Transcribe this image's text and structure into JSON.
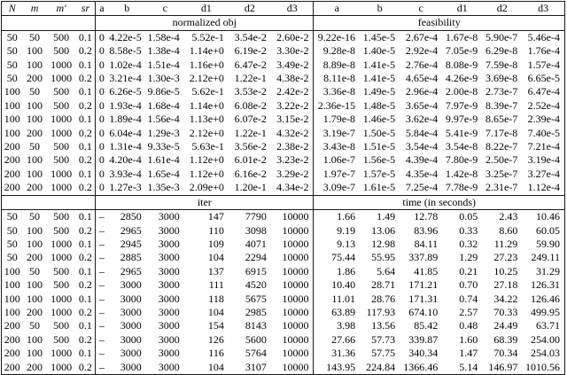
{
  "table": {
    "param_columns": [
      "N",
      "m",
      "m′",
      "sr"
    ],
    "method_columns": [
      "a",
      "b",
      "c",
      "d1",
      "d2",
      "d3"
    ],
    "param_rows": [
      [
        "50",
        "50",
        "500",
        "0.1"
      ],
      [
        "50",
        "100",
        "500",
        "0.2"
      ],
      [
        "50",
        "100",
        "1000",
        "0.1"
      ],
      [
        "50",
        "200",
        "1000",
        "0.2"
      ],
      [
        "100",
        "50",
        "500",
        "0.1"
      ],
      [
        "100",
        "100",
        "500",
        "0.2"
      ],
      [
        "100",
        "100",
        "1000",
        "0.1"
      ],
      [
        "100",
        "200",
        "1000",
        "0.2"
      ],
      [
        "200",
        "50",
        "500",
        "0.1"
      ],
      [
        "200",
        "100",
        "500",
        "0.2"
      ],
      [
        "200",
        "100",
        "1000",
        "0.1"
      ],
      [
        "200",
        "200",
        "1000",
        "0.2"
      ]
    ],
    "sections": [
      {
        "left_label": "normalized obj",
        "right_label": "feasibility",
        "left_rows": [
          [
            "0",
            "4.22e-5",
            "1.58e-4",
            "5.52e-1",
            "3.54e-2",
            "2.60e-2"
          ],
          [
            "0",
            "8.58e-5",
            "1.38e-4",
            "1.14e+0",
            "6.19e-2",
            "3.30e-2"
          ],
          [
            "0",
            "1.02e-4",
            "1.51e-4",
            "1.16e+0",
            "6.47e-2",
            "3.49e-2"
          ],
          [
            "0",
            "3.21e-4",
            "1.30e-3",
            "2.12e+0",
            "1.22e-1",
            "4.38e-2"
          ],
          [
            "0",
            "6.26e-5",
            "9.86e-5",
            "5.62e-1",
            "3.53e-2",
            "2.42e-2"
          ],
          [
            "0",
            "1.93e-4",
            "1.68e-4",
            "1.14e+0",
            "6.08e-2",
            "3.22e-2"
          ],
          [
            "0",
            "1.89e-4",
            "1.56e-4",
            "1.13e+0",
            "6.07e-2",
            "3.15e-2"
          ],
          [
            "0",
            "6.04e-4",
            "1.29e-3",
            "2.12e+0",
            "1.22e-1",
            "4.32e-2"
          ],
          [
            "0",
            "1.31e-4",
            "9.33e-5",
            "5.63e-1",
            "3.56e-2",
            "2.38e-2"
          ],
          [
            "0",
            "4.20e-4",
            "1.61e-4",
            "1.12e+0",
            "6.01e-2",
            "3.23e-2"
          ],
          [
            "0",
            "3.93e-4",
            "1.65e-4",
            "1.12e+0",
            "6.16e-2",
            "3.29e-2"
          ],
          [
            "0",
            "1.27e-3",
            "1.35e-3",
            "2.09e+0",
            "1.20e-1",
            "4.34e-2"
          ]
        ],
        "right_rows": [
          [
            "9.22e-16",
            "1.45e-5",
            "2.67e-4",
            "1.67e-8",
            "5.90e-7",
            "5.46e-4"
          ],
          [
            "9.28e-8",
            "1.40e-5",
            "2.92e-4",
            "7.05e-9",
            "6.29e-8",
            "1.76e-4"
          ],
          [
            "8.89e-8",
            "1.41e-5",
            "2.76e-4",
            "8.08e-9",
            "7.59e-8",
            "1.57e-4"
          ],
          [
            "8.11e-8",
            "1.41e-5",
            "4.65e-4",
            "4.26e-9",
            "3.69e-8",
            "6.65e-5"
          ],
          [
            "3.36e-8",
            "1.49e-5",
            "2.96e-4",
            "2.00e-8",
            "2.73e-7",
            "6.47e-4"
          ],
          [
            "2.36e-15",
            "1.48e-5",
            "3.65e-4",
            "7.97e-9",
            "8.39e-7",
            "2.52e-4"
          ],
          [
            "1.79e-8",
            "1.46e-5",
            "3.62e-4",
            "9.97e-9",
            "8.65e-7",
            "2.39e-4"
          ],
          [
            "3.19e-7",
            "1.50e-5",
            "5.84e-4",
            "5.41e-9",
            "7.17e-8",
            "7.40e-5"
          ],
          [
            "3.43e-8",
            "1.51e-5",
            "3.54e-4",
            "3.54e-8",
            "8.22e-7",
            "7.21e-4"
          ],
          [
            "1.06e-7",
            "1.56e-5",
            "4.39e-4",
            "7.80e-9",
            "2.50e-7",
            "3.19e-4"
          ],
          [
            "1.97e-7",
            "1.57e-5",
            "4.35e-4",
            "1.42e-8",
            "3.25e-7",
            "3.27e-4"
          ],
          [
            "3.09e-7",
            "1.61e-5",
            "7.25e-4",
            "7.78e-9",
            "2.31e-7",
            "1.12e-4"
          ]
        ]
      },
      {
        "left_label": "iter",
        "right_label": "time (in seconds)",
        "left_rows": [
          [
            "–",
            "2850",
            "3000",
            "147",
            "7790",
            "10000"
          ],
          [
            "–",
            "2965",
            "3000",
            "110",
            "3098",
            "10000"
          ],
          [
            "–",
            "2945",
            "3000",
            "109",
            "4071",
            "10000"
          ],
          [
            "–",
            "2885",
            "3000",
            "104",
            "2294",
            "10000"
          ],
          [
            "–",
            "2965",
            "3000",
            "137",
            "6915",
            "10000"
          ],
          [
            "–",
            "3000",
            "3000",
            "111",
            "4520",
            "10000"
          ],
          [
            "–",
            "3000",
            "3000",
            "118",
            "5675",
            "10000"
          ],
          [
            "–",
            "3000",
            "3000",
            "104",
            "2985",
            "10000"
          ],
          [
            "–",
            "3000",
            "3000",
            "154",
            "8143",
            "10000"
          ],
          [
            "–",
            "3000",
            "3000",
            "126",
            "5600",
            "10000"
          ],
          [
            "–",
            "3000",
            "3000",
            "116",
            "5764",
            "10000"
          ],
          [
            "–",
            "3000",
            "3000",
            "104",
            "3107",
            "10000"
          ]
        ],
        "right_rows": [
          [
            "1.66",
            "1.49",
            "12.78",
            "0.05",
            "2.43",
            "10.46"
          ],
          [
            "9.19",
            "13.06",
            "83.96",
            "0.33",
            "8.60",
            "60.05"
          ],
          [
            "9.13",
            "12.98",
            "84.11",
            "0.32",
            "11.29",
            "59.90"
          ],
          [
            "75.44",
            "55.95",
            "337.89",
            "1.29",
            "27.23",
            "249.11"
          ],
          [
            "1.86",
            "5.64",
            "41.85",
            "0.21",
            "10.25",
            "31.29"
          ],
          [
            "10.40",
            "28.71",
            "171.21",
            "0.70",
            "27.18",
            "126.31"
          ],
          [
            "11.01",
            "28.76",
            "171.31",
            "0.74",
            "34.22",
            "126.46"
          ],
          [
            "63.89",
            "117.93",
            "674.10",
            "2.57",
            "70.33",
            "499.95"
          ],
          [
            "3.98",
            "13.56",
            "85.42",
            "0.48",
            "24.49",
            "63.71"
          ],
          [
            "27.66",
            "57.73",
            "339.87",
            "1.60",
            "68.39",
            "254.00"
          ],
          [
            "31.36",
            "57.75",
            "340.34",
            "1.47",
            "70.34",
            "254.03"
          ],
          [
            "143.95",
            "224.84",
            "1366.46",
            "5.14",
            "146.97",
            "1010.56"
          ]
        ]
      }
    ]
  }
}
